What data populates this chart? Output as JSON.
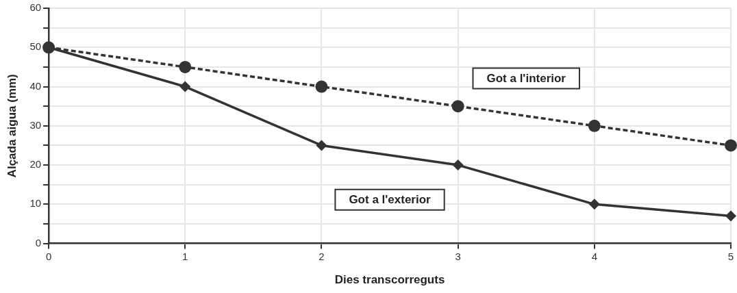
{
  "chart_data": {
    "type": "line",
    "xlabel": "Dies transcorreguts",
    "ylabel": "Alçada aigua (mm)",
    "x": [
      0,
      1,
      2,
      3,
      4,
      5
    ],
    "xlim": [
      0,
      5
    ],
    "xticks": [
      0,
      1,
      2,
      3,
      4,
      5
    ],
    "ylim": [
      0,
      60
    ],
    "yticks": [
      0,
      {
        "value": 5,
        "label": null
      },
      10,
      {
        "value": 15,
        "label": null
      },
      20,
      {
        "value": 25,
        "label": null
      },
      30,
      {
        "value": 35,
        "label": null
      },
      40,
      {
        "value": 45,
        "label": null
      },
      50,
      {
        "value": 55,
        "label": null
      },
      60
    ],
    "grid": true,
    "legend": false,
    "series": [
      {
        "name": "Got a l'interior",
        "color": "#333333",
        "values": [
          50,
          45,
          40,
          35,
          30,
          25
        ],
        "marker": "circle",
        "line_style": "dashed"
      },
      {
        "name": "Got a l'exterior",
        "color": "#333333",
        "values": [
          50,
          40,
          25,
          20,
          10,
          7
        ],
        "marker": "diamond",
        "line_style": "solid"
      }
    ]
  }
}
